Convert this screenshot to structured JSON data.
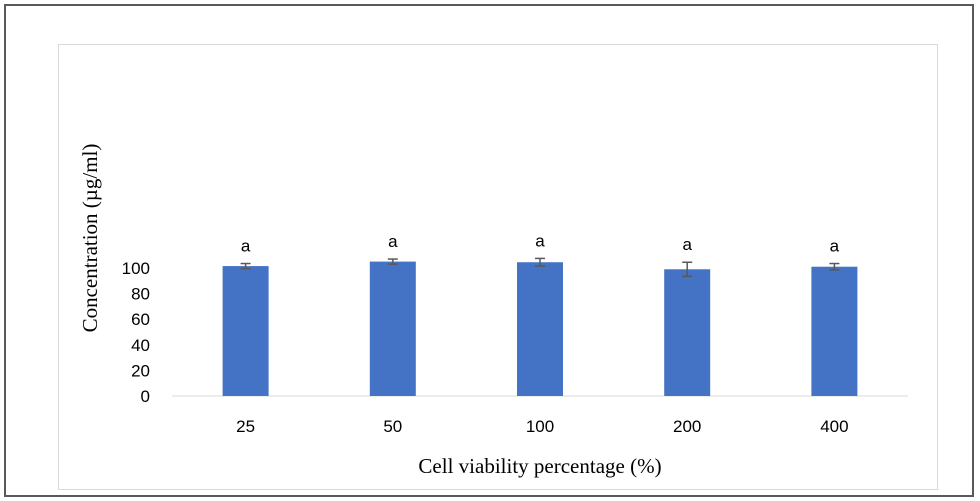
{
  "chart_data": {
    "type": "bar",
    "categories": [
      "25",
      "50",
      "100",
      "200",
      "400"
    ],
    "values": [
      101.5,
      105,
      104.5,
      99,
      101
    ],
    "errors": [
      2,
      2,
      3,
      5.5,
      2.5
    ],
    "labels": [
      "a",
      "a",
      "a",
      "a",
      "a"
    ],
    "xlabel": "Cell viability percentage (%)",
    "ylabel": "Concentration (µg/ml)",
    "ylim": [
      0,
      120
    ],
    "yticks": [
      0,
      20,
      40,
      60,
      80,
      100
    ],
    "grid": false,
    "bar_color": "#4472c4",
    "error_color": "#595959"
  }
}
